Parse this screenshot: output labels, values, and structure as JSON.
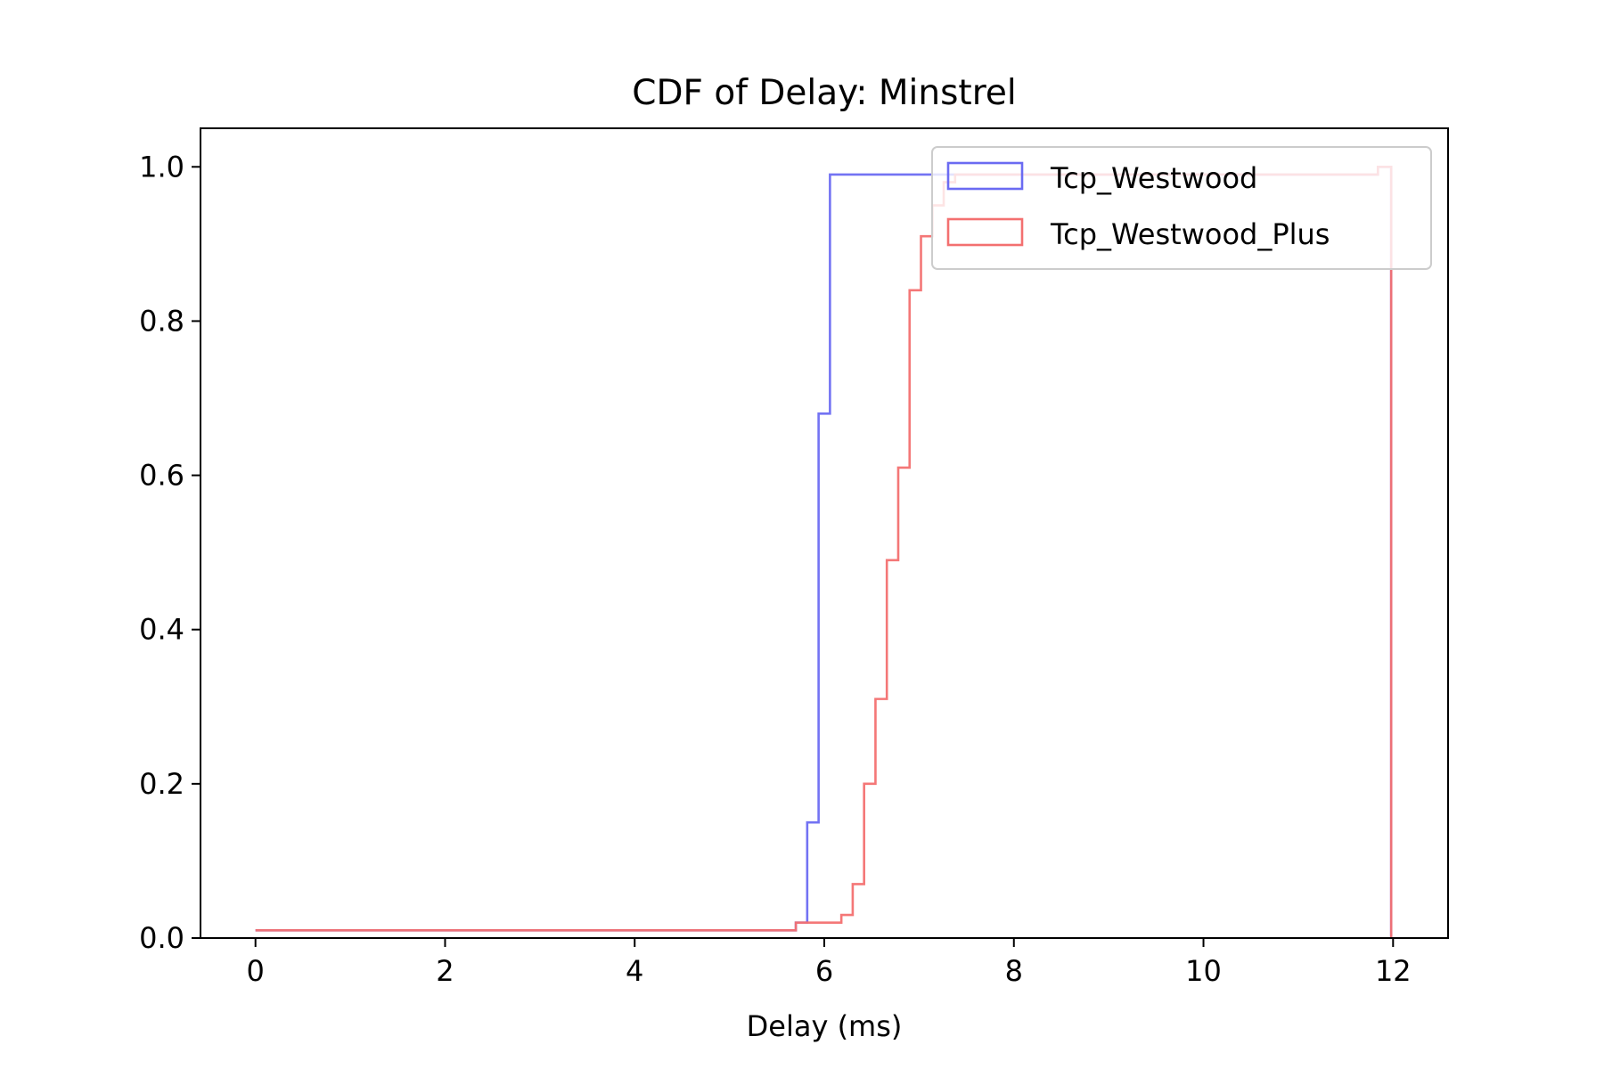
{
  "chart_data": {
    "type": "line",
    "step": true,
    "title": "CDF of Delay: Minstrel",
    "xlabel": "Delay (ms)",
    "ylabel": "",
    "xlim": [
      -0.58,
      12.58
    ],
    "ylim": [
      0,
      1.05
    ],
    "xticks": [
      0,
      2,
      4,
      6,
      8,
      10,
      12
    ],
    "xtick_labels": [
      "0",
      "2",
      "4",
      "6",
      "8",
      "10",
      "12"
    ],
    "yticks": [
      0.0,
      0.2,
      0.4,
      0.6,
      0.8,
      1.0
    ],
    "ytick_labels": [
      "0.0",
      "0.2",
      "0.4",
      "0.6",
      "0.8",
      "1.0"
    ],
    "grid": false,
    "legend_position": "top-right",
    "series": [
      {
        "name": "Tcp_Westwood",
        "color": "#6b6bf2",
        "points": [
          [
            0,
            0.01
          ],
          [
            5.7,
            0.01
          ],
          [
            5.7,
            0.02
          ],
          [
            5.82,
            0.02
          ],
          [
            5.82,
            0.15
          ],
          [
            5.94,
            0.15
          ],
          [
            5.94,
            0.68
          ],
          [
            6.06,
            0.68
          ],
          [
            6.06,
            0.99
          ],
          [
            11.84,
            0.99
          ],
          [
            11.84,
            1.0
          ],
          [
            11.98,
            1.0
          ],
          [
            11.98,
            0.0
          ]
        ]
      },
      {
        "name": "Tcp_Westwood_Plus",
        "color": "#f37070",
        "points": [
          [
            0,
            0.01
          ],
          [
            5.7,
            0.01
          ],
          [
            5.7,
            0.02
          ],
          [
            6.18,
            0.02
          ],
          [
            6.18,
            0.03
          ],
          [
            6.3,
            0.03
          ],
          [
            6.3,
            0.07
          ],
          [
            6.42,
            0.07
          ],
          [
            6.42,
            0.2
          ],
          [
            6.54,
            0.2
          ],
          [
            6.54,
            0.31
          ],
          [
            6.66,
            0.31
          ],
          [
            6.66,
            0.49
          ],
          [
            6.78,
            0.49
          ],
          [
            6.78,
            0.61
          ],
          [
            6.9,
            0.61
          ],
          [
            6.9,
            0.84
          ],
          [
            7.02,
            0.84
          ],
          [
            7.02,
            0.91
          ],
          [
            7.14,
            0.91
          ],
          [
            7.14,
            0.95
          ],
          [
            7.26,
            0.95
          ],
          [
            7.26,
            0.98
          ],
          [
            7.38,
            0.98
          ],
          [
            7.38,
            0.99
          ],
          [
            11.84,
            0.99
          ],
          [
            11.84,
            1.0
          ],
          [
            11.98,
            1.0
          ],
          [
            11.98,
            0.0
          ]
        ]
      }
    ]
  }
}
